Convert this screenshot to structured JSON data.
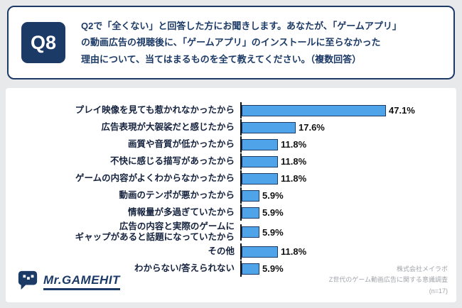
{
  "header": {
    "badge": "Q8",
    "question": "Q2で「全くない」と回答した方にお聞きします。あなたが、「ゲームアプリ」\nの動画広告の視聴後に、「ゲームアプリ」のインストールに至らなかった\n理由について、当てはまるものを全て教えてください。（複数回答）"
  },
  "chart_data": {
    "type": "bar",
    "orientation": "horizontal",
    "title": "",
    "categories": [
      "プレイ映像を見ても惹かれなかったから",
      "広告表現が大袈裟だと感じたから",
      "画質や音質が低かったから",
      "不快に感じる描写があったから",
      "ゲームの内容がよくわからなかったから",
      "動画のテンポが悪かったから",
      "情報量が多過ぎていたから",
      "広告の内容と実際のゲームに\nギャップがあると話題になっていたから",
      "その他",
      "わからない/答えられない"
    ],
    "values": [
      47.1,
      17.6,
      11.8,
      11.8,
      11.8,
      5.9,
      5.9,
      5.9,
      11.8,
      5.9
    ],
    "value_labels": [
      "47.1%",
      "17.6%",
      "11.8%",
      "11.8%",
      "11.8%",
      "5.9%",
      "5.9%",
      "5.9%",
      "11.8%",
      "5.9%"
    ],
    "xlim": [
      0,
      60
    ],
    "grid": false,
    "legend": null,
    "bar_color": "#4FA3E8",
    "bar_border_color": "#1C3A66",
    "axis_color": "#111111"
  },
  "footer": {
    "logo_text": "Mr.GAMEHIT",
    "source": "株式会社メイラボ\nZ世代のゲーム動画広告に関する意識調査\n(n=17)"
  },
  "colors": {
    "navy": "#1C3A66",
    "page_bg": "#E8E9EB",
    "card_bg": "#FFFFFF",
    "value_text": "#111111",
    "source_text": "#A0A4AA"
  }
}
